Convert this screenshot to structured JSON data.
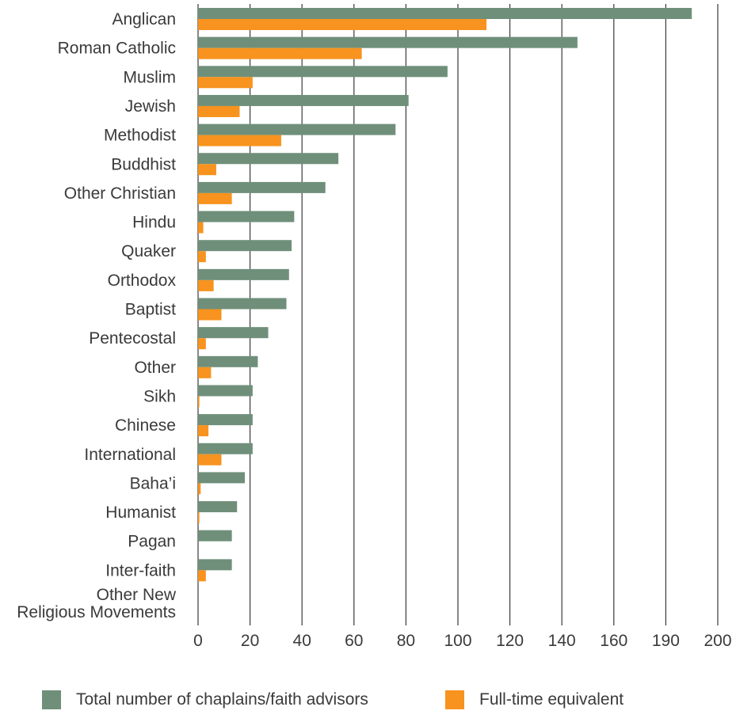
{
  "chart_data": {
    "type": "bar",
    "orientation": "horizontal",
    "categories": [
      "Anglican",
      "Roman Catholic",
      "Muslim",
      "Jewish",
      "Methodist",
      "Buddhist",
      "Other Christian",
      "Hindu",
      "Quaker",
      "Orthodox",
      "Baptist",
      "Pentecostal",
      "Other",
      "Sikh",
      "Chinese",
      "International",
      "Baha’i",
      "Humanist",
      "Pagan",
      "Inter-faith",
      "Other New\nReligious Movements"
    ],
    "series": [
      {
        "name": "Total number of chaplains/faith advisors",
        "color": "#6f8f7a",
        "values": [
          190,
          146,
          96,
          81,
          76,
          54,
          49,
          37,
          36,
          35,
          34,
          27,
          23,
          21,
          21,
          21,
          18,
          15,
          13,
          13,
          0
        ]
      },
      {
        "name": "Full-time equivalent",
        "color": "#f7931e",
        "values": [
          111,
          63,
          21,
          16,
          32,
          7,
          13,
          2,
          3,
          6,
          9,
          3,
          5,
          0.5,
          4,
          9,
          1,
          0.5,
          0,
          3,
          0
        ]
      }
    ],
    "xticks": [
      "0",
      "20",
      "40",
      "60",
      "80",
      "100",
      "120",
      "140",
      "160",
      "190",
      "200"
    ],
    "xlim": [
      0,
      200
    ],
    "grid": "vertical",
    "legend": "bottom",
    "title": "",
    "xlabel": "",
    "ylabel": ""
  }
}
